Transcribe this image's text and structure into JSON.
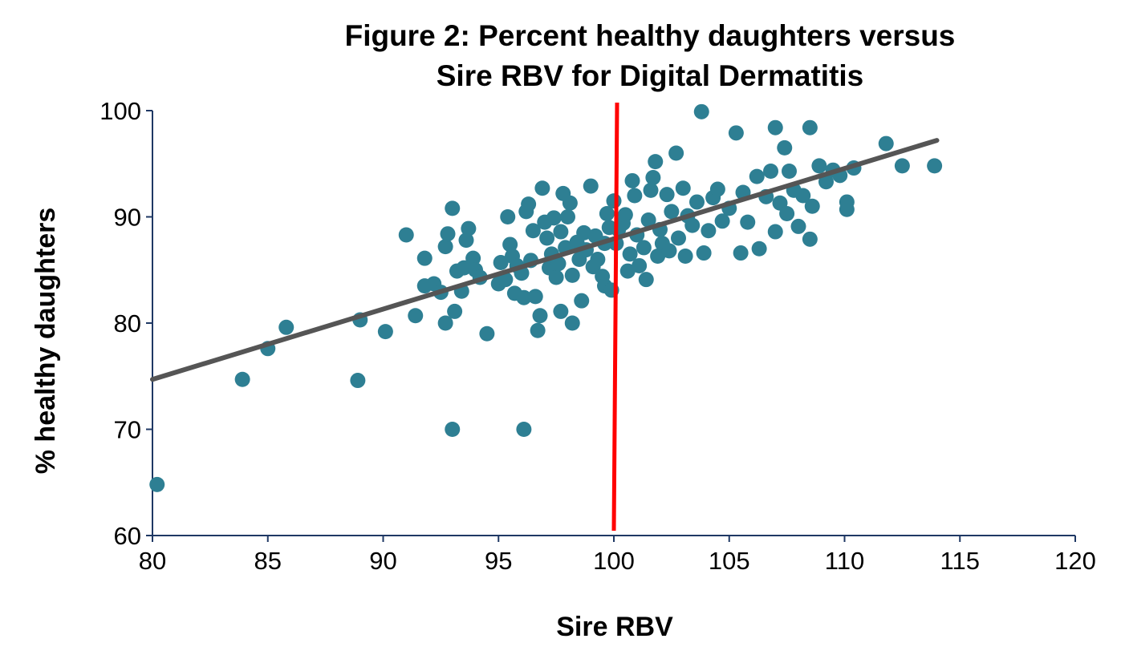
{
  "chart_data": {
    "type": "scatter",
    "title": "Figure 2: Percent healthy daughters versus Sire RBV for Digital Dermatitis",
    "title_lines": [
      "Figure 2: Percent healthy daughters versus",
      "Sire RBV for Digital Dermatitis"
    ],
    "xlabel": "Sire RBV",
    "ylabel": "% healthy daughters",
    "xlim": [
      80,
      120
    ],
    "ylim": [
      60,
      100
    ],
    "x_ticks": [
      80,
      85,
      90,
      95,
      100,
      105,
      110,
      115,
      120
    ],
    "y_ticks": [
      60,
      70,
      80,
      90,
      100
    ],
    "grid": false,
    "legend": "none",
    "colors": {
      "points": "#2E7F93",
      "trendline": "#555555",
      "reference_line": "#FF0000",
      "axis": "#1F3864"
    },
    "trendline": {
      "x": [
        80,
        114
      ],
      "y": [
        74.7,
        97.2
      ]
    },
    "reference_line": {
      "x": 100
    },
    "points": [
      [
        80.2,
        64.8
      ],
      [
        83.9,
        74.7
      ],
      [
        85.0,
        77.6
      ],
      [
        85.8,
        79.6
      ],
      [
        88.9,
        74.6
      ],
      [
        89.0,
        80.3
      ],
      [
        90.1,
        79.2
      ],
      [
        91.0,
        88.3
      ],
      [
        91.4,
        80.7
      ],
      [
        91.8,
        86.1
      ],
      [
        91.8,
        83.5
      ],
      [
        92.2,
        83.7
      ],
      [
        92.5,
        82.9
      ],
      [
        92.7,
        80.0
      ],
      [
        92.7,
        87.2
      ],
      [
        92.8,
        88.4
      ],
      [
        93.0,
        70.0
      ],
      [
        93.0,
        90.8
      ],
      [
        93.1,
        81.1
      ],
      [
        93.2,
        84.9
      ],
      [
        93.4,
        83.0
      ],
      [
        93.5,
        85.2
      ],
      [
        93.6,
        87.8
      ],
      [
        93.7,
        88.9
      ],
      [
        93.9,
        86.1
      ],
      [
        94.0,
        85.0
      ],
      [
        94.2,
        84.3
      ],
      [
        94.5,
        79.0
      ],
      [
        95.0,
        83.7
      ],
      [
        95.1,
        85.7
      ],
      [
        95.3,
        84.1
      ],
      [
        95.4,
        90.0
      ],
      [
        95.5,
        87.4
      ],
      [
        95.6,
        86.3
      ],
      [
        95.7,
        82.8
      ],
      [
        95.8,
        85.4
      ],
      [
        96.0,
        84.7
      ],
      [
        96.1,
        82.4
      ],
      [
        96.1,
        70.0
      ],
      [
        96.2,
        90.5
      ],
      [
        96.3,
        91.2
      ],
      [
        96.4,
        85.9
      ],
      [
        96.5,
        88.7
      ],
      [
        96.6,
        82.5
      ],
      [
        96.7,
        79.3
      ],
      [
        96.8,
        80.7
      ],
      [
        96.9,
        92.7
      ],
      [
        97.0,
        89.5
      ],
      [
        97.1,
        88.0
      ],
      [
        97.2,
        85.2
      ],
      [
        97.3,
        86.5
      ],
      [
        97.4,
        89.9
      ],
      [
        97.5,
        84.3
      ],
      [
        97.6,
        85.6
      ],
      [
        97.7,
        81.1
      ],
      [
        97.7,
        88.6
      ],
      [
        97.8,
        92.2
      ],
      [
        97.9,
        87.1
      ],
      [
        98.0,
        90.0
      ],
      [
        98.1,
        91.3
      ],
      [
        98.2,
        84.5
      ],
      [
        98.2,
        80.0
      ],
      [
        98.4,
        87.6
      ],
      [
        98.5,
        86.0
      ],
      [
        98.6,
        82.1
      ],
      [
        98.7,
        88.5
      ],
      [
        98.8,
        86.9
      ],
      [
        99.0,
        92.9
      ],
      [
        99.1,
        85.3
      ],
      [
        99.2,
        88.2
      ],
      [
        99.3,
        86.0
      ],
      [
        99.5,
        84.4
      ],
      [
        99.6,
        83.5
      ],
      [
        99.6,
        87.5
      ],
      [
        99.7,
        90.3
      ],
      [
        99.8,
        89.0
      ],
      [
        99.9,
        83.1
      ],
      [
        100.0,
        91.5
      ],
      [
        100.1,
        87.5
      ],
      [
        100.2,
        88.8
      ],
      [
        100.4,
        89.4
      ],
      [
        100.5,
        90.2
      ],
      [
        100.6,
        84.9
      ],
      [
        100.7,
        86.5
      ],
      [
        100.8,
        93.4
      ],
      [
        100.9,
        92.0
      ],
      [
        101.0,
        88.3
      ],
      [
        101.1,
        85.4
      ],
      [
        101.3,
        87.1
      ],
      [
        101.4,
        84.1
      ],
      [
        101.5,
        89.7
      ],
      [
        101.6,
        92.5
      ],
      [
        101.7,
        93.7
      ],
      [
        101.8,
        95.2
      ],
      [
        101.9,
        86.3
      ],
      [
        102.0,
        88.8
      ],
      [
        102.1,
        87.5
      ],
      [
        102.3,
        92.1
      ],
      [
        102.4,
        86.8
      ],
      [
        102.5,
        90.5
      ],
      [
        102.7,
        96.0
      ],
      [
        102.8,
        88.0
      ],
      [
        103.0,
        92.7
      ],
      [
        103.1,
        86.3
      ],
      [
        103.2,
        90.1
      ],
      [
        103.4,
        89.2
      ],
      [
        103.6,
        91.4
      ],
      [
        103.8,
        99.9
      ],
      [
        103.9,
        86.6
      ],
      [
        104.1,
        88.7
      ],
      [
        104.3,
        91.8
      ],
      [
        104.5,
        92.6
      ],
      [
        104.7,
        89.6
      ],
      [
        105.0,
        90.8
      ],
      [
        105.3,
        97.9
      ],
      [
        105.5,
        86.6
      ],
      [
        105.6,
        92.3
      ],
      [
        105.8,
        89.5
      ],
      [
        106.2,
        93.8
      ],
      [
        106.3,
        87.0
      ],
      [
        106.6,
        91.9
      ],
      [
        106.8,
        94.3
      ],
      [
        107.0,
        98.4
      ],
      [
        107.0,
        88.6
      ],
      [
        107.2,
        91.3
      ],
      [
        107.4,
        96.5
      ],
      [
        107.5,
        90.3
      ],
      [
        107.6,
        94.3
      ],
      [
        107.8,
        92.5
      ],
      [
        108.0,
        89.1
      ],
      [
        108.2,
        92.0
      ],
      [
        108.5,
        98.4
      ],
      [
        108.5,
        87.9
      ],
      [
        108.6,
        91.0
      ],
      [
        108.9,
        94.8
      ],
      [
        109.2,
        93.3
      ],
      [
        109.5,
        94.4
      ],
      [
        109.8,
        93.9
      ],
      [
        110.1,
        91.4
      ],
      [
        110.1,
        90.7
      ],
      [
        110.4,
        94.6
      ],
      [
        111.8,
        96.9
      ],
      [
        112.5,
        94.8
      ],
      [
        113.9,
        94.8
      ]
    ]
  }
}
